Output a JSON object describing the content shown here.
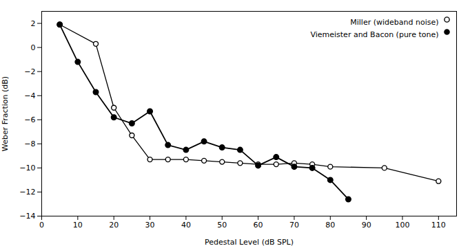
{
  "chart_data": {
    "type": "line",
    "xlabel": "Pedestal Level (dB SPL)",
    "ylabel": "Weber Fraction (dB)",
    "series": [
      {
        "name": "Miller (wideband noise)",
        "color": "#000000",
        "marker": "open-circle",
        "x": [
          5,
          15,
          20,
          25,
          30,
          35,
          40,
          45,
          50,
          55,
          60,
          65,
          70,
          75,
          80,
          95,
          110
        ],
        "values": [
          1.9,
          0.3,
          -5.0,
          -7.3,
          -9.3,
          -9.3,
          -9.3,
          -9.4,
          -9.5,
          -9.6,
          -9.7,
          -9.7,
          -9.6,
          -9.7,
          -9.9,
          -10.0,
          -11.1
        ]
      },
      {
        "name": "Viemeister and Bacon (pure tone)",
        "color": "#000000",
        "marker": "filled-circle",
        "x": [
          5,
          10,
          15,
          20,
          25,
          30,
          35,
          40,
          45,
          50,
          55,
          60,
          65,
          70,
          75,
          80,
          85
        ],
        "values": [
          1.9,
          -1.2,
          -3.7,
          -5.8,
          -6.3,
          -5.3,
          -8.1,
          -8.5,
          -7.8,
          -8.3,
          -8.5,
          -9.8,
          -9.1,
          -9.9,
          -10.0,
          -11.0,
          -12.6
        ]
      }
    ],
    "xlim": [
      0,
      115
    ],
    "ylim": [
      -14,
      3
    ],
    "xticks": [
      0,
      10,
      20,
      30,
      40,
      50,
      60,
      70,
      80,
      90,
      100,
      110
    ],
    "yticks": [
      2,
      0,
      -2,
      -4,
      -6,
      -8,
      -10,
      -12,
      -14
    ],
    "grid": false,
    "legend": "top-right"
  }
}
